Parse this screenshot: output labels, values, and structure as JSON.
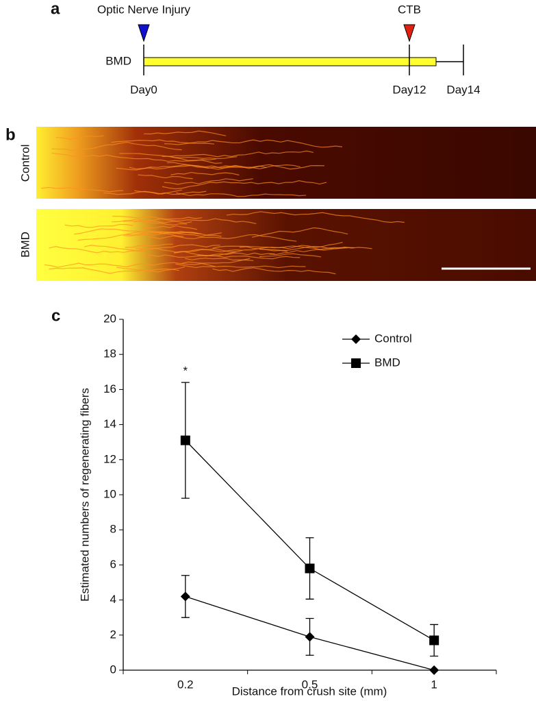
{
  "panel_a": {
    "label": "a",
    "injury": "Optic Nerve Injury",
    "tracer": "CTB",
    "group": "BMD",
    "days": [
      "Day0",
      "Day12",
      "Day14"
    ]
  },
  "panel_b": {
    "label": "b",
    "rows": [
      "Control",
      "BMD"
    ]
  },
  "chart_data": {
    "type": "line",
    "panel_label": "c",
    "ylabel": "Estimated numbers of regenerating fibers",
    "xlabel": "Distance from crush site (mm)",
    "categories": [
      "0.2",
      "0.5",
      "1"
    ],
    "series": [
      {
        "name": "Control",
        "color": "#000000",
        "marker": "diamond",
        "values": [
          4.2,
          1.9,
          0
        ],
        "errors": [
          1.2,
          1.05,
          0
        ]
      },
      {
        "name": "BMD",
        "color": "#000000",
        "marker": "square",
        "values": [
          13.1,
          5.8,
          1.7
        ],
        "errors": [
          3.3,
          1.75,
          0.9
        ]
      }
    ],
    "ylim": [
      0,
      20
    ],
    "yticks": [
      0,
      2,
      4,
      6,
      8,
      10,
      12,
      14,
      16,
      18,
      20
    ],
    "legend": "top-right",
    "annotations": [
      {
        "text": "*"
      }
    ]
  }
}
